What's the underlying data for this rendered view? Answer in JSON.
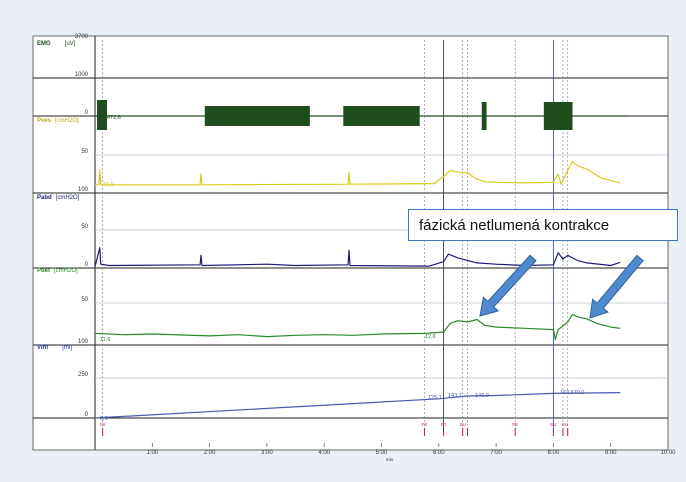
{
  "callout": {
    "text": "fázická netlumená kontrakce"
  },
  "colors": {
    "emg": "#1e4d1e",
    "pves": "#d8cc18",
    "pabd": "#1c1c78",
    "pdet": "#2a8a2a",
    "vinf": "#4a5ab0",
    "arrow": "#4f8ad0",
    "marker": "#c0185a",
    "grid": "#b8bcc4",
    "divider": "#222222"
  },
  "chart_data": {
    "type": "line",
    "x_unit": "min",
    "xlim": [
      "0:00",
      "10:00"
    ],
    "x_ticks": [
      "1:00",
      "2:00",
      "3:00",
      "4:00",
      "5:00",
      "6:00",
      "7:00",
      "8:00",
      "9:00",
      "10:00"
    ],
    "event_labels": [
      "FS",
      "FS",
      "FD",
      "SU",
      "FS",
      "SU",
      "SU"
    ],
    "series": [
      {
        "name": "EMG",
        "unit": "[uV]",
        "axis_values": [
          "3700",
          "1000",
          "0"
        ],
        "annotations": [
          "472,8"
        ],
        "bursts": [
          [
            "1:55",
            "3:45"
          ],
          [
            "4:20",
            "5:40"
          ],
          [
            "6:45",
            "6:50"
          ],
          [
            "7:50",
            "8:00"
          ],
          [
            "8:00",
            "8:20"
          ]
        ]
      },
      {
        "name": "Pves",
        "unit": "[cmH2O]",
        "axis_values": [
          "50",
          "100"
        ],
        "annotations": [
          "16,9"
        ],
        "points": [
          [
            "0:00",
            5
          ],
          [
            "0:04",
            5
          ],
          [
            "0:05",
            28
          ],
          [
            "0:06",
            5
          ],
          [
            "1:50",
            5
          ],
          [
            "1:51",
            22
          ],
          [
            "1:52",
            5
          ],
          [
            "4:25",
            6
          ],
          [
            "4:26",
            25
          ],
          [
            "4:27",
            6
          ],
          [
            "5:55",
            7
          ],
          [
            "6:05",
            18
          ],
          [
            "6:12",
            28
          ],
          [
            "6:20",
            25
          ],
          [
            "6:30",
            24
          ],
          [
            "6:40",
            14
          ],
          [
            "6:48",
            10
          ],
          [
            "7:00",
            9
          ],
          [
            "7:30",
            8
          ],
          [
            "8:00",
            9
          ],
          [
            "8:05",
            22
          ],
          [
            "8:08",
            6
          ],
          [
            "8:15",
            28
          ],
          [
            "8:20",
            42
          ],
          [
            "8:25",
            35
          ],
          [
            "8:35",
            30
          ],
          [
            "8:50",
            16
          ],
          [
            "9:00",
            12
          ],
          [
            "9:10",
            8
          ]
        ]
      },
      {
        "name": "Pabd",
        "unit": "[cmH2O]",
        "axis_values": [
          "50",
          "0"
        ],
        "annotations": [],
        "points": [
          [
            "0:00",
            2
          ],
          [
            "0:05",
            32
          ],
          [
            "0:06",
            6
          ],
          [
            "0:15",
            4
          ],
          [
            "1:50",
            5
          ],
          [
            "1:51",
            20
          ],
          [
            "1:52",
            4
          ],
          [
            "3:00",
            6
          ],
          [
            "3:30",
            4
          ],
          [
            "4:25",
            5
          ],
          [
            "4:26",
            28
          ],
          [
            "4:27",
            4
          ],
          [
            "5:50",
            3
          ],
          [
            "6:05",
            10
          ],
          [
            "6:10",
            22
          ],
          [
            "6:20",
            16
          ],
          [
            "6:30",
            12
          ],
          [
            "6:40",
            8
          ],
          [
            "7:00",
            6
          ],
          [
            "7:30",
            4
          ],
          [
            "8:00",
            5
          ],
          [
            "8:05",
            24
          ],
          [
            "8:10",
            14
          ],
          [
            "8:15",
            20
          ],
          [
            "8:25",
            12
          ],
          [
            "8:35",
            8
          ],
          [
            "9:00",
            4
          ],
          [
            "9:10",
            9
          ]
        ]
      },
      {
        "name": "Pdet",
        "unit": "[cmH2O]",
        "axis_values": [
          "50",
          "100"
        ],
        "annotations": [
          "11,6",
          "12,6"
        ],
        "points": [
          [
            "0:00",
            12
          ],
          [
            "0:30",
            10
          ],
          [
            "1:00",
            11
          ],
          [
            "2:00",
            8
          ],
          [
            "2:30",
            10
          ],
          [
            "3:00",
            7
          ],
          [
            "3:30",
            9
          ],
          [
            "4:00",
            10
          ],
          [
            "4:30",
            9
          ],
          [
            "5:00",
            11
          ],
          [
            "5:45",
            12
          ],
          [
            "6:05",
            14
          ],
          [
            "6:12",
            28
          ],
          [
            "6:20",
            32
          ],
          [
            "6:30",
            30
          ],
          [
            "6:40",
            34
          ],
          [
            "6:48",
            25
          ],
          [
            "7:00",
            22
          ],
          [
            "7:30",
            20
          ],
          [
            "8:00",
            18
          ],
          [
            "8:02",
            2
          ],
          [
            "8:05",
            18
          ],
          [
            "8:15",
            30
          ],
          [
            "8:20",
            42
          ],
          [
            "8:25",
            38
          ],
          [
            "8:35",
            35
          ],
          [
            "8:45",
            28
          ],
          [
            "9:00",
            22
          ],
          [
            "9:10",
            20
          ]
        ]
      },
      {
        "name": "Vinf",
        "unit": "[ml]",
        "axis_values": [
          "250",
          "0"
        ],
        "annotations": [
          "0,0",
          "125,1",
          "143,7",
          "149,0",
          "163,670,0"
        ],
        "points": [
          [
            "0:00",
            0
          ],
          [
            "6:00",
            125
          ],
          [
            "6:30",
            143
          ],
          [
            "7:00",
            146
          ],
          [
            "8:00",
            160
          ],
          [
            "9:10",
            165
          ]
        ]
      }
    ]
  }
}
